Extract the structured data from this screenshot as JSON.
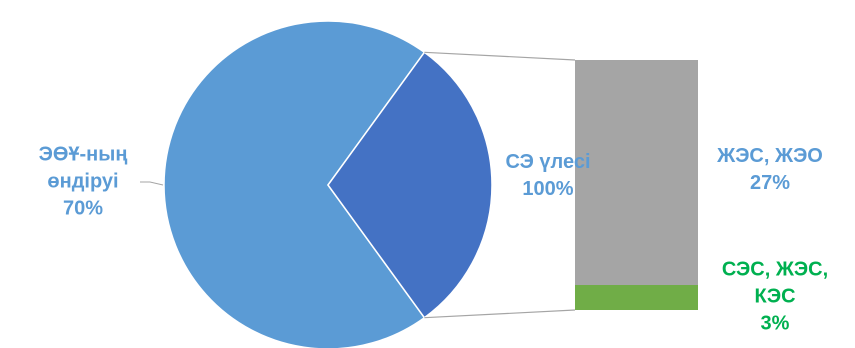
{
  "chart_data": {
    "type": "pie-of-bar",
    "categories": [
      "ЭӨҰ-ның өндіруі"
    ],
    "values": [
      70
    ],
    "value_labels": [
      "70%"
    ],
    "colors": [
      "#5b9bd5"
    ],
    "other": {
      "name": "СЭ үлесі",
      "value": 100,
      "value_label": "100%",
      "color": "#4472c4"
    },
    "bar": {
      "categories": [
        "ЖЭС, ЖЭО",
        "СЭС, ЖЭС, КЭС"
      ],
      "values": [
        27,
        3
      ],
      "value_labels": [
        "27%",
        "3%"
      ],
      "colors": [
        "#a5a5a5",
        "#70ad47"
      ],
      "label_colors": [
        "#5b9bd5",
        "#00b050"
      ]
    }
  }
}
